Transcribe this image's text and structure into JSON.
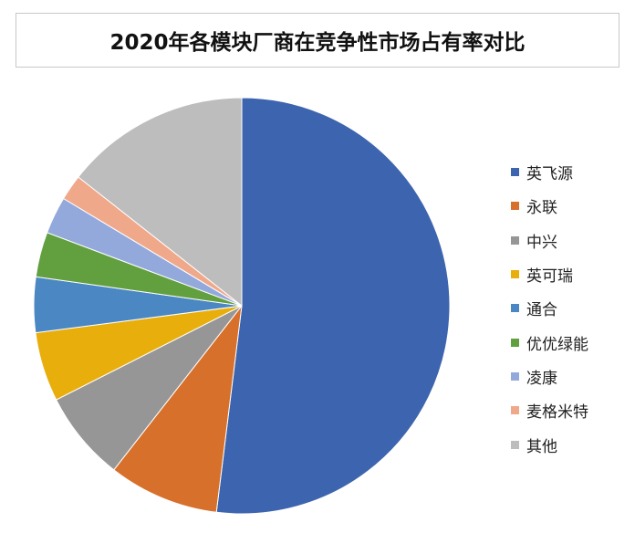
{
  "chart_data": {
    "type": "pie",
    "title": "2020年各模块厂商在竞争性市场占有率对比",
    "start_angle": "12 o'clock",
    "direction": "clockwise",
    "legend_position": "right",
    "slices": [
      {
        "name": "英飞源",
        "value": 52.0,
        "color": "#3d64ae"
      },
      {
        "name": "永联",
        "value": 8.6,
        "color": "#d7702b"
      },
      {
        "name": "中兴",
        "value": 7.0,
        "color": "#969696"
      },
      {
        "name": "英可瑞",
        "value": 5.4,
        "color": "#e8ae0c"
      },
      {
        "name": "通合",
        "value": 4.3,
        "color": "#4b87c2"
      },
      {
        "name": "优优绿能",
        "value": 3.5,
        "color": "#62a03f"
      },
      {
        "name": "凌康",
        "value": 2.9,
        "color": "#93a9dc"
      },
      {
        "name": "麦格米特",
        "value": 2.0,
        "color": "#f0a88a"
      },
      {
        "name": "其他",
        "value": 14.4,
        "color": "#bdbdbd"
      }
    ]
  }
}
